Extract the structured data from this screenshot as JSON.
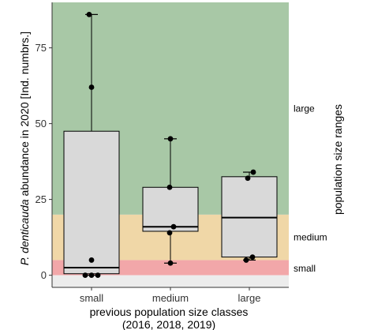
{
  "chart_data": {
    "type": "box",
    "ylabel_species": "P. denticauda",
    "ylabel_rest": " abundance in 2020 [Ind. numbrs.]",
    "xlabel_line1": "previous population size classes",
    "xlabel_line2": "(2016, 2018, 2019)",
    "right_label": "population size ranges",
    "ylim": [
      -4,
      90
    ],
    "yticks": [
      {
        "value": 0,
        "label": "0"
      },
      {
        "value": 25,
        "label": "25"
      },
      {
        "value": 50,
        "label": "50"
      },
      {
        "value": 75,
        "label": "75"
      }
    ],
    "bands": [
      {
        "name": "small",
        "from": 0,
        "to": 5,
        "color": "#f2a7a9",
        "label_at": 2.2
      },
      {
        "name": "medium",
        "from": 5,
        "to": 20,
        "color": "#f0d7a7",
        "label_at": 12.5
      },
      {
        "name": "large",
        "from": 20,
        "to": 90,
        "color": "#a8c8a6",
        "label_at": 55
      },
      {
        "name": "",
        "from": -4,
        "to": 0,
        "color": "#ececec",
        "label_at": null
      }
    ],
    "categories": [
      "small",
      "medium",
      "large"
    ],
    "boxes": [
      {
        "category": "small",
        "min": 0,
        "q1": 0.5,
        "median": 2.5,
        "q3": 47.5,
        "max": 86,
        "points": [
          86,
          62,
          5,
          0,
          0,
          0
        ]
      },
      {
        "category": "medium",
        "min": 4,
        "q1": 14.5,
        "median": 16,
        "q3": 29,
        "max": 45,
        "points": [
          45,
          29,
          16,
          14,
          4
        ]
      },
      {
        "category": "large",
        "min": 5,
        "q1": 6,
        "median": 19,
        "q3": 32.5,
        "max": 34,
        "points": [
          34,
          32,
          6,
          5
        ]
      }
    ],
    "box_fill": "#d9d9d9",
    "point_color": "#000000"
  }
}
